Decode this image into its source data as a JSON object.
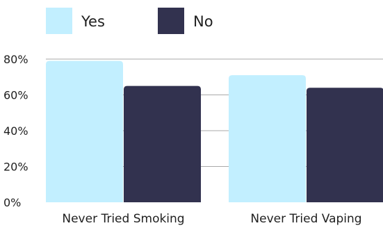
{
  "chart_data": {
    "type": "bar",
    "categories": [
      "Never Tried Smoking",
      "Never Tried Vaping"
    ],
    "series": [
      {
        "name": "Yes",
        "values": [
          79,
          71
        ],
        "color": "#c2efff"
      },
      {
        "name": "No",
        "values": [
          65,
          64
        ],
        "color": "#32324f"
      }
    ],
    "ylim": [
      0,
      80
    ],
    "yticks": [
      0,
      20,
      40,
      60,
      80
    ],
    "tick_suffix": "%",
    "title": "",
    "xlabel": "",
    "ylabel": "",
    "legend_position": "top-left",
    "grid": true
  }
}
